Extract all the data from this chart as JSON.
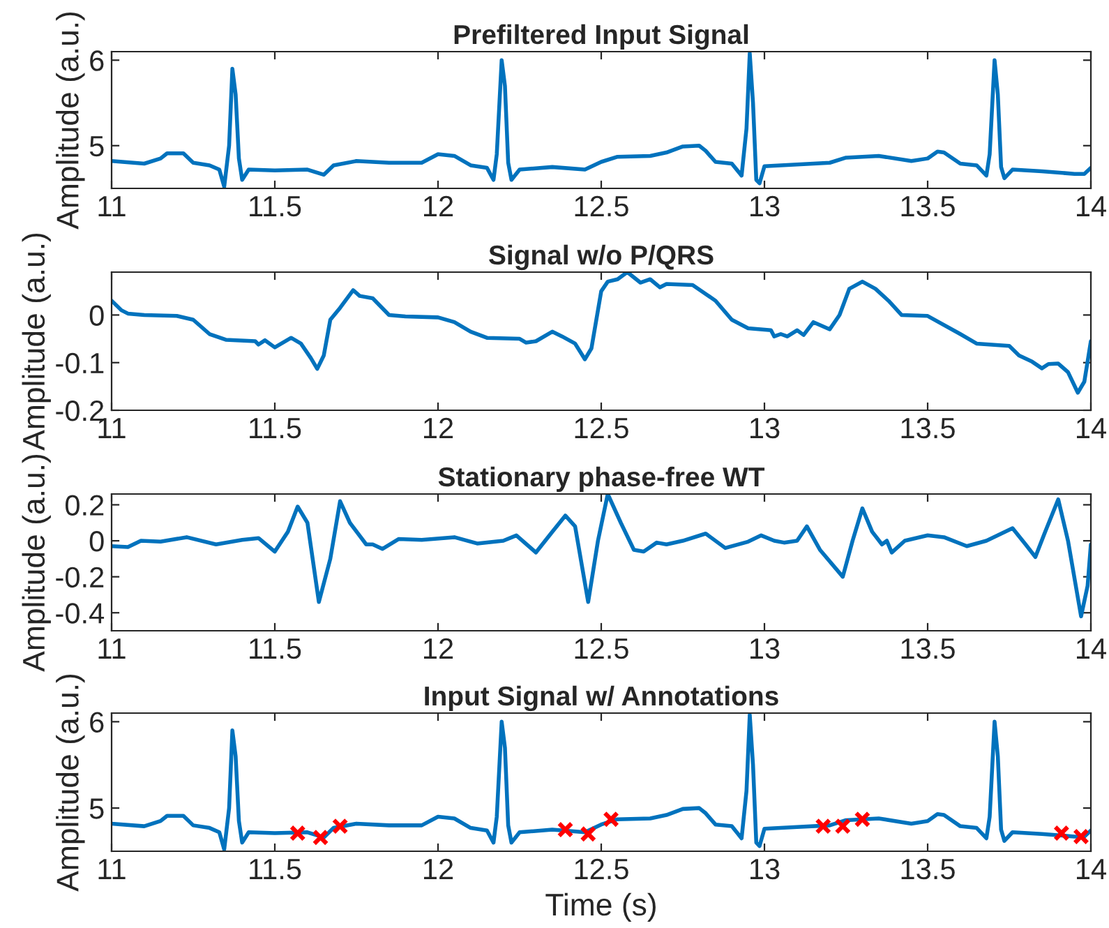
{
  "chart_data": [
    {
      "type": "line",
      "title": "Prefiltered Input Signal",
      "ylabel": "Amplitude (a.u.)",
      "xlim": [
        11,
        14
      ],
      "ylim": [
        4.5,
        6.1
      ],
      "xticks": [
        11,
        11.5,
        12,
        12.5,
        13,
        13.5,
        14
      ],
      "yticks": [
        5,
        6
      ],
      "series": [
        {
          "color": "#0072bd",
          "x": [
            11.0,
            11.1,
            11.15,
            11.17,
            11.22,
            11.25,
            11.3,
            11.33,
            11.345,
            11.36,
            11.37,
            11.38,
            11.39,
            11.4,
            11.42,
            11.5,
            11.6,
            11.65,
            11.68,
            11.75,
            11.85,
            11.95,
            12.0,
            12.05,
            12.1,
            12.15,
            12.17,
            12.18,
            12.195,
            12.205,
            12.215,
            12.225,
            12.25,
            12.35,
            12.45,
            12.5,
            12.55,
            12.65,
            12.7,
            12.75,
            12.8,
            12.82,
            12.85,
            12.9,
            12.93,
            12.945,
            12.955,
            12.965,
            12.975,
            12.985,
            13.0,
            13.1,
            13.2,
            13.25,
            13.35,
            13.45,
            13.5,
            13.53,
            13.55,
            13.6,
            13.65,
            13.68,
            13.69,
            13.705,
            13.715,
            13.725,
            13.735,
            13.76,
            13.85,
            13.95,
            13.98,
            14.0
          ],
          "values": [
            4.82,
            4.79,
            4.85,
            4.91,
            4.91,
            4.8,
            4.77,
            4.72,
            4.52,
            5.0,
            5.9,
            5.6,
            4.85,
            4.6,
            4.72,
            4.71,
            4.72,
            4.66,
            4.77,
            4.82,
            4.8,
            4.8,
            4.9,
            4.88,
            4.77,
            4.74,
            4.6,
            4.9,
            6.0,
            5.7,
            4.8,
            4.6,
            4.72,
            4.75,
            4.72,
            4.81,
            4.87,
            4.88,
            4.92,
            4.99,
            5.0,
            4.94,
            4.81,
            4.79,
            4.65,
            5.2,
            6.08,
            5.5,
            4.6,
            4.56,
            4.76,
            4.78,
            4.8,
            4.86,
            4.88,
            4.82,
            4.85,
            4.93,
            4.92,
            4.79,
            4.77,
            4.65,
            4.9,
            6.0,
            5.6,
            4.75,
            4.62,
            4.72,
            4.7,
            4.67,
            4.67,
            4.74
          ]
        }
      ]
    },
    {
      "type": "line",
      "title": "Signal w/o P/QRS",
      "ylabel": "Amplitude (a.u.)",
      "xlim": [
        11,
        14
      ],
      "ylim": [
        -0.2,
        0.09
      ],
      "xticks": [
        11,
        11.5,
        12,
        12.5,
        13,
        13.5,
        14
      ],
      "yticks": [
        -0.2,
        -0.1,
        0
      ],
      "series": [
        {
          "color": "#0072bd",
          "x": [
            11.0,
            11.03,
            11.05,
            11.1,
            11.2,
            11.25,
            11.3,
            11.35,
            11.44,
            11.45,
            11.47,
            11.5,
            11.55,
            11.58,
            11.61,
            11.63,
            11.65,
            11.67,
            11.7,
            11.74,
            11.76,
            11.8,
            11.85,
            11.9,
            12.0,
            12.05,
            12.1,
            12.15,
            12.25,
            12.27,
            12.3,
            12.35,
            12.38,
            12.42,
            12.45,
            12.47,
            12.5,
            12.52,
            12.55,
            12.58,
            12.62,
            12.65,
            12.68,
            12.7,
            12.78,
            12.85,
            12.9,
            12.95,
            13.02,
            13.03,
            13.05,
            13.07,
            13.1,
            13.12,
            13.15,
            13.2,
            13.23,
            13.26,
            13.3,
            13.34,
            13.38,
            13.42,
            13.5,
            13.6,
            13.65,
            13.75,
            13.78,
            13.82,
            13.85,
            13.87,
            13.9,
            13.93,
            13.96,
            13.98,
            14.0
          ],
          "values": [
            0.03,
            0.01,
            0.003,
            0.0,
            -0.002,
            -0.01,
            -0.04,
            -0.052,
            -0.055,
            -0.062,
            -0.053,
            -0.068,
            -0.048,
            -0.06,
            -0.09,
            -0.113,
            -0.085,
            -0.01,
            0.015,
            0.052,
            0.04,
            0.035,
            0.0,
            -0.003,
            -0.005,
            -0.015,
            -0.035,
            -0.048,
            -0.05,
            -0.058,
            -0.055,
            -0.035,
            -0.045,
            -0.06,
            -0.093,
            -0.07,
            0.05,
            0.07,
            0.075,
            0.09,
            0.068,
            0.075,
            0.058,
            0.065,
            0.063,
            0.03,
            -0.01,
            -0.028,
            -0.032,
            -0.045,
            -0.04,
            -0.045,
            -0.032,
            -0.042,
            -0.015,
            -0.03,
            0.0,
            0.055,
            0.07,
            0.055,
            0.03,
            0.0,
            -0.002,
            -0.04,
            -0.06,
            -0.065,
            -0.085,
            -0.098,
            -0.112,
            -0.103,
            -0.102,
            -0.12,
            -0.163,
            -0.14,
            -0.055
          ]
        }
      ]
    },
    {
      "type": "line",
      "title": "Stationary phase-free WT",
      "ylabel": "Amplitude (a.u.)",
      "xlim": [
        11,
        14
      ],
      "ylim": [
        -0.5,
        0.26
      ],
      "xticks": [
        11,
        11.5,
        12,
        12.5,
        13,
        13.5,
        14
      ],
      "yticks": [
        -0.4,
        -0.2,
        0,
        0.2
      ],
      "series": [
        {
          "color": "#0072bd",
          "x": [
            11.0,
            11.05,
            11.09,
            11.15,
            11.23,
            11.32,
            11.4,
            11.45,
            11.5,
            11.54,
            11.57,
            11.6,
            11.635,
            11.67,
            11.7,
            11.73,
            11.78,
            11.8,
            11.83,
            11.88,
            11.95,
            12.05,
            12.12,
            12.2,
            12.24,
            12.3,
            12.35,
            12.39,
            12.42,
            12.46,
            12.49,
            12.52,
            12.56,
            12.6,
            12.63,
            12.67,
            12.7,
            12.75,
            12.82,
            12.88,
            12.95,
            12.99,
            13.03,
            13.06,
            13.1,
            13.13,
            13.17,
            13.24,
            13.27,
            13.3,
            13.33,
            13.36,
            13.375,
            13.39,
            13.43,
            13.5,
            13.55,
            13.62,
            13.68,
            13.76,
            13.8,
            13.83,
            13.86,
            13.9,
            13.93,
            13.97,
            13.99,
            14.0
          ],
          "values": [
            -0.03,
            -0.035,
            0.0,
            -0.005,
            0.02,
            -0.02,
            0.005,
            0.015,
            -0.06,
            0.05,
            0.19,
            0.1,
            -0.34,
            -0.1,
            0.22,
            0.1,
            -0.02,
            -0.02,
            -0.045,
            0.01,
            0.005,
            0.02,
            -0.015,
            0.0,
            0.03,
            -0.065,
            0.05,
            0.14,
            0.08,
            -0.34,
            0.0,
            0.26,
            0.1,
            -0.05,
            -0.06,
            -0.01,
            -0.02,
            0.0,
            0.04,
            -0.04,
            -0.005,
            0.03,
            0.0,
            -0.01,
            0.0,
            0.08,
            -0.05,
            -0.2,
            0.0,
            0.18,
            0.05,
            -0.02,
            0.0,
            -0.065,
            0.0,
            0.03,
            0.02,
            -0.03,
            0.0,
            0.07,
            -0.02,
            -0.09,
            0.05,
            0.23,
            0.0,
            -0.42,
            -0.25,
            -0.02
          ]
        }
      ]
    },
    {
      "type": "line",
      "title": "Input Signal w/ Annotations",
      "xlabel": "Time (s)",
      "ylabel": "Amplitude (a.u.)",
      "xlim": [
        11,
        14
      ],
      "ylim": [
        4.5,
        6.1
      ],
      "xticks": [
        11,
        11.5,
        12,
        12.5,
        13,
        13.5,
        14
      ],
      "yticks": [
        5,
        6
      ],
      "series": [
        {
          "color": "#0072bd",
          "x": [
            11.0,
            11.1,
            11.15,
            11.17,
            11.22,
            11.25,
            11.3,
            11.33,
            11.345,
            11.36,
            11.37,
            11.38,
            11.39,
            11.4,
            11.42,
            11.5,
            11.6,
            11.65,
            11.68,
            11.75,
            11.85,
            11.95,
            12.0,
            12.05,
            12.1,
            12.15,
            12.17,
            12.18,
            12.195,
            12.205,
            12.215,
            12.225,
            12.25,
            12.35,
            12.45,
            12.5,
            12.55,
            12.65,
            12.7,
            12.75,
            12.8,
            12.82,
            12.85,
            12.9,
            12.93,
            12.945,
            12.955,
            12.965,
            12.975,
            12.985,
            13.0,
            13.1,
            13.2,
            13.25,
            13.35,
            13.45,
            13.5,
            13.53,
            13.55,
            13.6,
            13.65,
            13.68,
            13.69,
            13.705,
            13.715,
            13.725,
            13.735,
            13.76,
            13.85,
            13.95,
            13.98,
            14.0
          ],
          "values": [
            4.82,
            4.79,
            4.85,
            4.91,
            4.91,
            4.8,
            4.77,
            4.72,
            4.52,
            5.0,
            5.9,
            5.6,
            4.85,
            4.6,
            4.72,
            4.71,
            4.72,
            4.66,
            4.77,
            4.82,
            4.8,
            4.8,
            4.9,
            4.88,
            4.77,
            4.74,
            4.6,
            4.9,
            6.0,
            5.7,
            4.8,
            4.6,
            4.72,
            4.75,
            4.72,
            4.81,
            4.87,
            4.88,
            4.92,
            4.99,
            5.0,
            4.94,
            4.81,
            4.79,
            4.65,
            5.2,
            6.08,
            5.5,
            4.6,
            4.56,
            4.76,
            4.78,
            4.8,
            4.86,
            4.88,
            4.82,
            4.85,
            4.93,
            4.92,
            4.79,
            4.77,
            4.65,
            4.9,
            6.0,
            5.6,
            4.75,
            4.62,
            4.72,
            4.7,
            4.67,
            4.67,
            4.74
          ]
        },
        {
          "type": "scatter",
          "marker": "cross",
          "color": "#ff0000",
          "x": [
            11.57,
            11.64,
            11.7,
            12.39,
            12.46,
            12.53,
            13.18,
            13.24,
            13.3,
            13.91,
            13.97
          ],
          "values": [
            4.71,
            4.66,
            4.79,
            4.75,
            4.7,
            4.87,
            4.79,
            4.79,
            4.87,
            4.71,
            4.67
          ]
        }
      ]
    }
  ]
}
